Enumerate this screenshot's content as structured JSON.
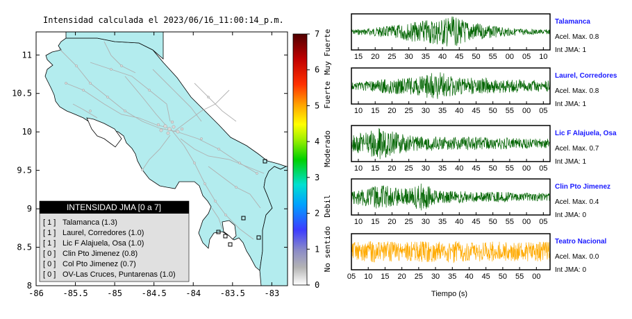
{
  "map": {
    "title": "Intensidad calculada el 2023/06/16_11:00:14_p.m.",
    "xticks": [
      "-86",
      "-85.5",
      "-85",
      "-84.5",
      "-84",
      "-83.5",
      "-83"
    ],
    "yticks": [
      "11",
      "10.5",
      "10",
      "9.5",
      "9",
      "8.5",
      "8"
    ],
    "xlim": [
      -86,
      -82.8
    ],
    "ylim": [
      8,
      11.3
    ],
    "colors": {
      "land": "#b3ecee",
      "sea": "#ffffff",
      "roads": "#b4b4b4",
      "border": "#000000"
    }
  },
  "legend": {
    "title": "INTENSIDAD JMA [0 a 7]",
    "items": [
      {
        "level": "[ 1 ]",
        "station": "Talamanca (1.3)"
      },
      {
        "level": "[ 1 ]",
        "station": "Laurel, Corredores (1.0)"
      },
      {
        "level": "[ 1 ]",
        "station": "Lic F Alajuela, Osa (1.0)"
      },
      {
        "level": "[ 0 ]",
        "station": "Clin Pto Jimenez (0.8)"
      },
      {
        "level": "[ 0 ]",
        "station": "Col Pto Jimenez (0.7)"
      },
      {
        "level": "[ 0 ]",
        "station": "OV-Las Cruces, Puntarenas (1.0)"
      }
    ]
  },
  "colorbar": {
    "ticks": [
      "0",
      "1",
      "2",
      "3",
      "4",
      "5",
      "6",
      "7"
    ],
    "categories": [
      "No sentido",
      "Debil",
      "Moderado",
      "Fuerte",
      "Muy Fuerte"
    ],
    "range": [
      0,
      7
    ]
  },
  "chart_data": [
    {
      "type": "line",
      "name": "Talamanca",
      "accel_label": "Acel. Max. 0.8",
      "jma_label": "Int JMA: 1",
      "xticks": [
        "15",
        "20",
        "25",
        "30",
        "35",
        "40",
        "45",
        "50",
        "55",
        "00",
        "05",
        "10"
      ],
      "color": "#006400",
      "amplitude_profile": [
        0.15,
        0.2,
        0.3,
        0.4,
        0.55,
        0.7,
        0.8,
        0.95,
        0.7,
        0.5,
        0.35,
        0.25,
        0.2,
        0.15,
        0.15
      ]
    },
    {
      "type": "line",
      "name": "Laurel, Corredores",
      "accel_label": "Acel. Max. 0.8",
      "jma_label": "Int JMA: 1",
      "xticks": [
        "10",
        "15",
        "20",
        "25",
        "30",
        "35",
        "40",
        "45",
        "50",
        "55",
        "00",
        "05"
      ],
      "color": "#006400",
      "amplitude_profile": [
        0.2,
        0.3,
        0.4,
        0.5,
        0.5,
        0.6,
        0.95,
        0.6,
        0.5,
        0.5,
        0.45,
        0.4,
        0.4,
        0.35,
        0.35
      ]
    },
    {
      "type": "line",
      "name": "Lic F Alajuela, Osa",
      "accel_label": "Acel. Max. 0.7",
      "jma_label": "Int JMA: 1",
      "xticks": [
        "10",
        "15",
        "20",
        "25",
        "30",
        "35",
        "40",
        "45",
        "50",
        "55",
        "00",
        "05"
      ],
      "color": "#006400",
      "amplitude_profile": [
        0.5,
        0.7,
        0.95,
        0.7,
        0.5,
        0.45,
        0.45,
        0.4,
        0.4,
        0.4,
        0.35,
        0.35,
        0.3,
        0.3,
        0.3
      ]
    },
    {
      "type": "line",
      "name": "Clin Pto Jimenez",
      "accel_label": "Acel. Max. 0.4",
      "jma_label": "Int JMA: 0",
      "xticks": [
        "10",
        "15",
        "20",
        "25",
        "30",
        "35",
        "40",
        "45",
        "50",
        "55",
        "00",
        "05"
      ],
      "color": "#006400",
      "amplitude_profile": [
        0.4,
        0.55,
        0.75,
        0.6,
        0.5,
        0.9,
        0.4,
        0.35,
        0.35,
        0.3,
        0.3,
        0.3,
        0.25,
        0.25,
        0.25
      ]
    },
    {
      "type": "line",
      "name": "Teatro Nacional",
      "accel_label": "Acel. Max. 0.0",
      "jma_label": "Int JMA: 0",
      "xticks": [
        "05",
        "10",
        "15",
        "20",
        "25",
        "30",
        "35",
        "40",
        "45",
        "50",
        "55",
        "00"
      ],
      "xlabel": "Tiempo (s)",
      "color": "#ffaa00",
      "amplitude_profile": [
        0.6,
        0.6,
        0.65,
        0.6,
        0.6,
        0.65,
        0.6,
        0.7,
        0.6,
        0.6,
        0.65,
        0.6,
        0.6,
        0.6,
        0.6
      ]
    }
  ]
}
